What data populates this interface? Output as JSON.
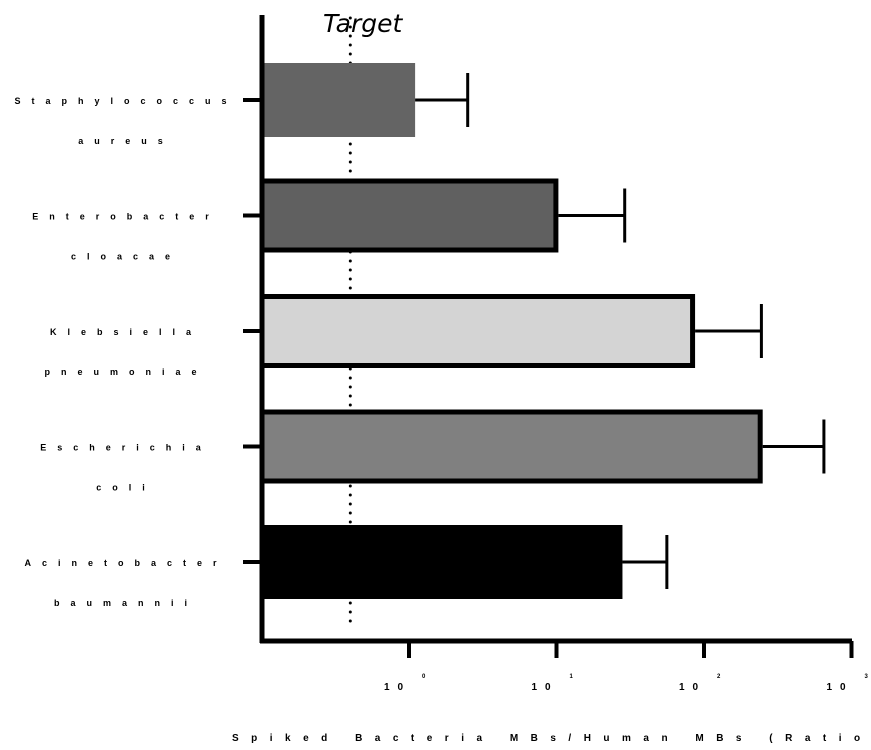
{
  "chart_data": {
    "type": "bar",
    "orientation": "horizontal",
    "x_scale": "log",
    "xlim": [
      0.1,
      1000
    ],
    "x_ticks": [
      {
        "value": 1,
        "base": "10",
        "exp": "0"
      },
      {
        "value": 10,
        "base": "10",
        "exp": "1"
      },
      {
        "value": 100,
        "base": "10",
        "exp": "2"
      },
      {
        "value": 1000,
        "base": "10",
        "exp": "3"
      }
    ],
    "xlabel": "Spiked Bacteria MBs/Human MBs (Ratio",
    "categories": [
      {
        "line1": "Staphylococcus",
        "line2": "aureus",
        "value": 1.1,
        "error_upper": 2.5,
        "color": "#646464",
        "border": false
      },
      {
        "line1": "Enterobacter",
        "line2": "cloacae",
        "value": 10.3,
        "error_upper": 29,
        "color": "#606060",
        "border": true
      },
      {
        "line1": "Klebsiella",
        "line2": "pneumoniae",
        "value": 87,
        "error_upper": 245,
        "color": "#d4d4d4",
        "border": true
      },
      {
        "line1": "Escherichia",
        "line2": "coli",
        "value": 250,
        "error_upper": 650,
        "color": "#808080",
        "border": true
      },
      {
        "line1": "Acinetobacter",
        "line2": "baumannii",
        "value": 28,
        "error_upper": 56,
        "color": "#000000",
        "border": false
      }
    ],
    "reference_line": {
      "label": "Target",
      "value": 0.4,
      "style": "dotted"
    }
  }
}
